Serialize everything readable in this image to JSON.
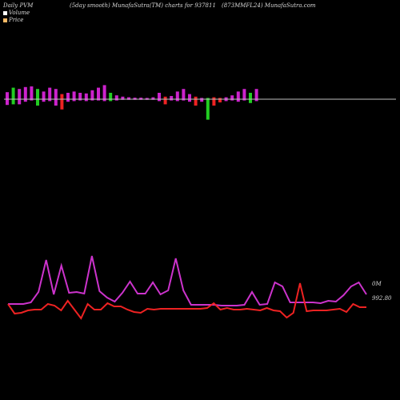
{
  "header": {
    "left": "Daily PVM",
    "middle": "(5day smooth) MunafaSutra(TM) charts for 937811",
    "right": "(873MMFL24) MunafaSutra.com"
  },
  "legend": {
    "volume_label": "Volume",
    "price_label": "Price"
  },
  "colors": {
    "background": "#000000",
    "baseline": "#c0c0c0",
    "bar_magenta": "#cc22cc",
    "bar_green": "#22cc22",
    "bar_red": "#ee2222",
    "volume_line": "#cc33cc",
    "price_line": "#ee2222",
    "volume_swatch": "#ffffff",
    "price_swatch": "#ffbb66"
  },
  "chart_data": {
    "type": "line",
    "volume_bars": [
      {
        "up": 0.55,
        "down": 0.45,
        "color": "magenta"
      },
      {
        "up": 0.9,
        "down": 0.4,
        "color": "green"
      },
      {
        "up": 0.8,
        "down": 0.4,
        "color": "magenta"
      },
      {
        "up": 0.95,
        "down": 0.2,
        "color": "magenta"
      },
      {
        "up": 1.0,
        "down": 0.1,
        "color": "magenta"
      },
      {
        "up": 0.8,
        "down": 0.5,
        "color": "green"
      },
      {
        "up": 0.6,
        "down": 0.2,
        "color": "magenta"
      },
      {
        "up": 0.9,
        "down": 0.15,
        "color": "magenta"
      },
      {
        "up": 0.8,
        "down": 0.5,
        "color": "magenta"
      },
      {
        "up": 0.4,
        "down": 0.8,
        "color": "red"
      },
      {
        "up": 0.5,
        "down": 0.2,
        "color": "magenta"
      },
      {
        "up": 0.6,
        "down": 0.15,
        "color": "magenta"
      },
      {
        "up": 0.5,
        "down": 0.1,
        "color": "magenta"
      },
      {
        "up": 0.45,
        "down": 0.15,
        "color": "magenta"
      },
      {
        "up": 0.7,
        "down": 0.1,
        "color": "magenta"
      },
      {
        "up": 0.9,
        "down": 0.1,
        "color": "magenta"
      },
      {
        "up": 1.1,
        "down": 0.15,
        "color": "magenta"
      },
      {
        "up": 0.5,
        "down": 0.15,
        "color": "green"
      },
      {
        "up": 0.3,
        "down": 0.1,
        "color": "magenta"
      },
      {
        "up": 0.2,
        "down": 0.05,
        "color": "magenta"
      },
      {
        "up": 0.15,
        "down": 0.05,
        "color": "magenta"
      },
      {
        "up": 0.12,
        "down": 0.05,
        "color": "magenta"
      },
      {
        "up": 0.12,
        "down": 0.05,
        "color": "magenta"
      },
      {
        "up": 0.1,
        "down": 0.05,
        "color": "magenta"
      },
      {
        "up": 0.15,
        "down": 0.05,
        "color": "magenta"
      },
      {
        "up": 0.5,
        "down": 0.15,
        "color": "magenta"
      },
      {
        "up": 0.2,
        "down": 0.4,
        "color": "red"
      },
      {
        "up": 0.25,
        "down": 0.1,
        "color": "magenta"
      },
      {
        "up": 0.6,
        "down": 0.15,
        "color": "magenta"
      },
      {
        "up": 0.8,
        "down": 0.1,
        "color": "magenta"
      },
      {
        "up": 0.4,
        "down": 0.2,
        "color": "magenta"
      },
      {
        "up": 0.2,
        "down": 0.5,
        "color": "red"
      },
      {
        "up": 0.1,
        "down": 0.2,
        "color": "magenta"
      },
      {
        "up": 0.1,
        "down": 1.6,
        "color": "green"
      },
      {
        "up": 0.15,
        "down": 0.5,
        "color": "red"
      },
      {
        "up": 0.1,
        "down": 0.25,
        "color": "red"
      },
      {
        "up": 0.15,
        "down": 0.15,
        "color": "magenta"
      },
      {
        "up": 0.3,
        "down": 0.1,
        "color": "magenta"
      },
      {
        "up": 0.6,
        "down": 0.2,
        "color": "magenta"
      },
      {
        "up": 0.8,
        "down": 0.1,
        "color": "magenta"
      },
      {
        "up": 0.5,
        "down": 0.3,
        "color": "green"
      },
      {
        "up": 0.8,
        "down": 0.15,
        "color": "magenta"
      }
    ],
    "volume_line": [
      60,
      60,
      60,
      58,
      45,
      5,
      48,
      12,
      46,
      45,
      47,
      0,
      44,
      52,
      57,
      46,
      32,
      47,
      47,
      33,
      48,
      43,
      3,
      43,
      61,
      61,
      61,
      61,
      62,
      62,
      62,
      61,
      45,
      61,
      60,
      33,
      38,
      58,
      58,
      58,
      58,
      59,
      56,
      57,
      49,
      38,
      33,
      48
    ],
    "price_line": [
      60,
      72,
      71,
      68,
      67,
      67,
      60,
      62,
      68,
      56,
      67,
      78,
      60,
      67,
      67,
      59,
      63,
      63,
      67,
      70,
      71,
      66,
      67,
      66,
      66,
      66,
      66,
      66,
      66,
      66,
      65,
      59,
      67,
      65,
      67,
      67,
      66,
      67,
      68,
      65,
      68,
      69,
      77,
      71,
      34,
      69,
      68,
      68,
      68,
      67,
      66,
      70,
      60,
      64,
      64
    ],
    "right_labels": [
      "0M",
      "992.80"
    ]
  }
}
